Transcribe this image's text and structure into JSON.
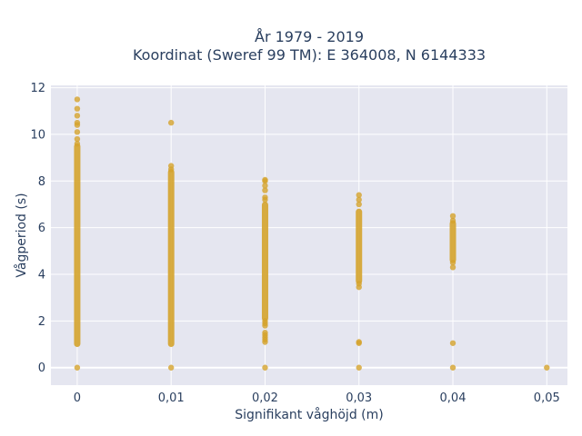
{
  "chart_data": {
    "type": "scatter",
    "title": "År 1979 - 2019",
    "subtitle": "Koordinat (Sweref 99 TM): E 364008, N 6144333",
    "xlabel": "Signifikant våghöjd (m)",
    "ylabel": "Vågperiod (s)",
    "xlim": [
      -0.0028,
      0.0522
    ],
    "ylim": [
      -0.75,
      12.1
    ],
    "x_ticks": [
      0,
      0.01,
      0.02,
      0.03,
      0.04,
      0.05
    ],
    "x_tick_labels": [
      "0",
      "0,01",
      "0,02",
      "0,03",
      "0,04",
      "0,05"
    ],
    "y_ticks": [
      0,
      2,
      4,
      6,
      8,
      10,
      12
    ],
    "y_tick_labels": [
      "0",
      "2",
      "4",
      "6",
      "8",
      "10",
      "12"
    ],
    "grid": true,
    "marker_color": "#d4a32c",
    "plot_background": "#e5e6f0",
    "columns": [
      {
        "x": 0,
        "range": [
          1.0,
          9.5
        ],
        "points": [
          0,
          9.6,
          9.8,
          10.1,
          10.4,
          10.5,
          10.8,
          11.1,
          11.5
        ]
      },
      {
        "x": 0.01,
        "range": [
          1.0,
          8.4
        ],
        "points": [
          0,
          8.5,
          8.65,
          10.5
        ]
      },
      {
        "x": 0.02,
        "range": [
          2.1,
          7.0
        ],
        "points": [
          0,
          1.1,
          1.2,
          1.3,
          1.4,
          1.5,
          1.8,
          1.9,
          2.0,
          7.2,
          7.3,
          7.6,
          7.8,
          8.0,
          8.05
        ]
      },
      {
        "x": 0.03,
        "range": [
          3.7,
          6.7
        ],
        "points": [
          0,
          1.05,
          1.1,
          3.45,
          3.6,
          7.0,
          7.2,
          7.4
        ]
      },
      {
        "x": 0.04,
        "range": [
          4.6,
          6.2
        ],
        "points": [
          0,
          1.05,
          4.3,
          4.5,
          6.3,
          6.5
        ]
      },
      {
        "x": 0.05,
        "range": null,
        "points": [
          0
        ]
      }
    ]
  }
}
